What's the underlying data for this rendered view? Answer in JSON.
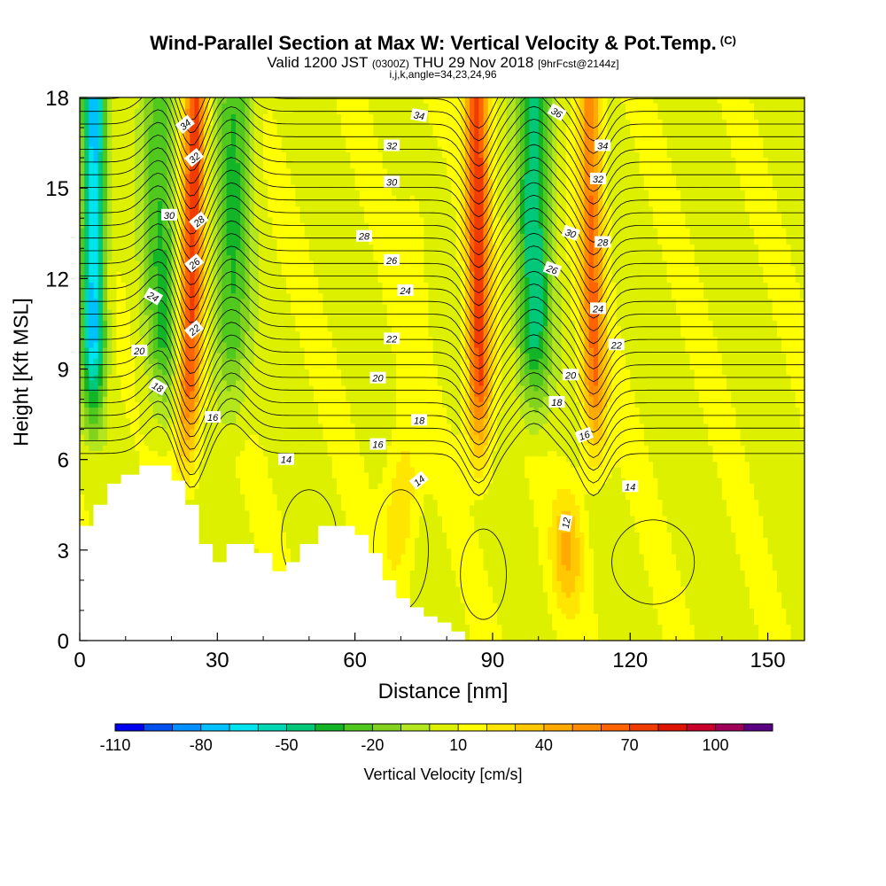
{
  "title": {
    "main": "Wind-Parallel Section at Max W: Vertical Velocity & Pot.Temp.",
    "main_suffix": "(C)",
    "valid_prefix": "Valid 1200 JST",
    "valid_utc": "(0300Z)",
    "valid_date": "THU 29 Nov 2018",
    "forecast_info": "[9hrFcst@2144z]",
    "section_params": "i,j,k,angle=34,23,24,96"
  },
  "chart_data": {
    "type": "heatmap",
    "xlabel": "Distance [nm]",
    "ylabel": "Height [Kft MSL]",
    "xlim": [
      0,
      158
    ],
    "ylim": [
      0,
      18
    ],
    "x_ticks": [
      0,
      30,
      60,
      90,
      120,
      150
    ],
    "y_ticks": [
      0,
      3,
      6,
      9,
      12,
      15,
      18
    ],
    "x_tick_labels": [
      "0",
      "30",
      "60",
      "90",
      "120",
      "150"
    ],
    "y_tick_labels": [
      "0",
      "3",
      "6",
      "9",
      "12",
      "15",
      "18"
    ],
    "field": "Vertical Velocity",
    "units": "cm/s",
    "colorbar": {
      "label": "Vertical Velocity [cm/s]",
      "tick_labels": [
        "-110",
        "-80",
        "-50",
        "-20",
        "10",
        "40",
        "70",
        "100"
      ],
      "tick_values": [
        -110,
        -80,
        -50,
        -20,
        10,
        40,
        70,
        100
      ],
      "levels": [
        -110,
        -100,
        -90,
        -80,
        -70,
        -60,
        -50,
        -40,
        -30,
        -20,
        -10,
        0,
        10,
        20,
        30,
        40,
        50,
        60,
        70,
        80,
        90,
        100,
        110
      ],
      "colors": [
        "#0000f0",
        "#0050f0",
        "#0090ff",
        "#00c0ff",
        "#00e4f0",
        "#00d8b4",
        "#00c878",
        "#14b428",
        "#50c81e",
        "#82d21e",
        "#b4e61e",
        "#dcf000",
        "#ffff00",
        "#ffe600",
        "#ffc800",
        "#ffaa00",
        "#ff8c00",
        "#ff6400",
        "#f03c00",
        "#dc1400",
        "#c8002a",
        "#a0005a",
        "#5a0082"
      ]
    },
    "updraft_bands": [
      {
        "x_center": 24,
        "peak_cm_s": 75
      },
      {
        "x_center": 87,
        "peak_cm_s": 75
      },
      {
        "x_center": 112,
        "peak_cm_s": 60
      },
      {
        "x_center": 72,
        "peak_cm_s": 30
      },
      {
        "x_center": 106,
        "peak_cm_s": 40
      }
    ],
    "downdraft_bands": [
      {
        "x_center": 3,
        "peak_cm_s": -75
      },
      {
        "x_center": 18,
        "peak_cm_s": -30
      },
      {
        "x_center": 33,
        "peak_cm_s": -30
      },
      {
        "x_center": 99,
        "peak_cm_s": -45
      }
    ],
    "terrain": [
      {
        "x": 0,
        "h": 3.8
      },
      {
        "x": 3,
        "h": 4.5
      },
      {
        "x": 6,
        "h": 5.2
      },
      {
        "x": 9,
        "h": 5.5
      },
      {
        "x": 13,
        "h": 5.8
      },
      {
        "x": 20,
        "h": 5.3
      },
      {
        "x": 23,
        "h": 4.5
      },
      {
        "x": 26,
        "h": 3.2
      },
      {
        "x": 29,
        "h": 2.6
      },
      {
        "x": 32,
        "h": 3.2
      },
      {
        "x": 38,
        "h": 2.9
      },
      {
        "x": 42,
        "h": 2.3
      },
      {
        "x": 45,
        "h": 2.6
      },
      {
        "x": 48,
        "h": 3.2
      },
      {
        "x": 52,
        "h": 3.8
      },
      {
        "x": 60,
        "h": 3.5
      },
      {
        "x": 63,
        "h": 2.9
      },
      {
        "x": 66,
        "h": 2.0
      },
      {
        "x": 69,
        "h": 1.4
      },
      {
        "x": 72,
        "h": 1.1
      },
      {
        "x": 75,
        "h": 0.8
      },
      {
        "x": 78,
        "h": 0.6
      },
      {
        "x": 81,
        "h": 0.3
      },
      {
        "x": 84,
        "h": 0
      }
    ],
    "theta_contour_labels": [
      {
        "value": "34",
        "x": 23,
        "y": 17.1,
        "angle": -40
      },
      {
        "value": "32",
        "x": 25,
        "y": 16.0,
        "angle": -40
      },
      {
        "value": "30",
        "x": 19.5,
        "y": 14.1,
        "angle": 0
      },
      {
        "value": "28",
        "x": 26,
        "y": 13.9,
        "angle": -40
      },
      {
        "value": "26",
        "x": 25,
        "y": 12.5,
        "angle": -40
      },
      {
        "value": "24",
        "x": 16,
        "y": 11.4,
        "angle": 30
      },
      {
        "value": "22",
        "x": 25,
        "y": 10.3,
        "angle": -40
      },
      {
        "value": "20",
        "x": 13,
        "y": 9.6,
        "angle": 0
      },
      {
        "value": "18",
        "x": 17,
        "y": 8.4,
        "angle": 30
      },
      {
        "value": "16",
        "x": 29,
        "y": 7.4,
        "angle": 0
      },
      {
        "value": "14",
        "x": 45,
        "y": 6.0,
        "angle": 0
      },
      {
        "value": "34",
        "x": 74,
        "y": 17.4,
        "angle": 10
      },
      {
        "value": "32",
        "x": 68,
        "y": 16.4,
        "angle": 0
      },
      {
        "value": "30",
        "x": 68,
        "y": 15.2,
        "angle": 0
      },
      {
        "value": "28",
        "x": 62,
        "y": 13.4,
        "angle": 0
      },
      {
        "value": "26",
        "x": 68,
        "y": 12.6,
        "angle": 0
      },
      {
        "value": "24",
        "x": 71,
        "y": 11.6,
        "angle": 0
      },
      {
        "value": "22",
        "x": 68,
        "y": 10.0,
        "angle": 0
      },
      {
        "value": "20",
        "x": 65,
        "y": 8.7,
        "angle": 0
      },
      {
        "value": "18",
        "x": 74,
        "y": 7.3,
        "angle": 0
      },
      {
        "value": "16",
        "x": 65,
        "y": 6.5,
        "angle": 0
      },
      {
        "value": "14",
        "x": 74,
        "y": 5.3,
        "angle": -40
      },
      {
        "value": "36",
        "x": 104,
        "y": 17.5,
        "angle": 30
      },
      {
        "value": "34",
        "x": 114,
        "y": 16.4,
        "angle": 0
      },
      {
        "value": "32",
        "x": 113,
        "y": 15.3,
        "angle": 0
      },
      {
        "value": "30",
        "x": 107,
        "y": 13.5,
        "angle": 20
      },
      {
        "value": "28",
        "x": 114,
        "y": 13.2,
        "angle": 0
      },
      {
        "value": "26",
        "x": 103,
        "y": 12.3,
        "angle": 20
      },
      {
        "value": "24",
        "x": 113,
        "y": 11.0,
        "angle": 0
      },
      {
        "value": "22",
        "x": 117,
        "y": 9.8,
        "angle": 0
      },
      {
        "value": "20",
        "x": 107,
        "y": 8.8,
        "angle": 0
      },
      {
        "value": "18",
        "x": 104,
        "y": 7.9,
        "angle": 0
      },
      {
        "value": "16",
        "x": 110,
        "y": 6.8,
        "angle": -20
      },
      {
        "value": "14",
        "x": 120,
        "y": 5.1,
        "angle": 0
      },
      {
        "value": "12",
        "x": 106,
        "y": 3.9,
        "angle": -80
      }
    ]
  }
}
